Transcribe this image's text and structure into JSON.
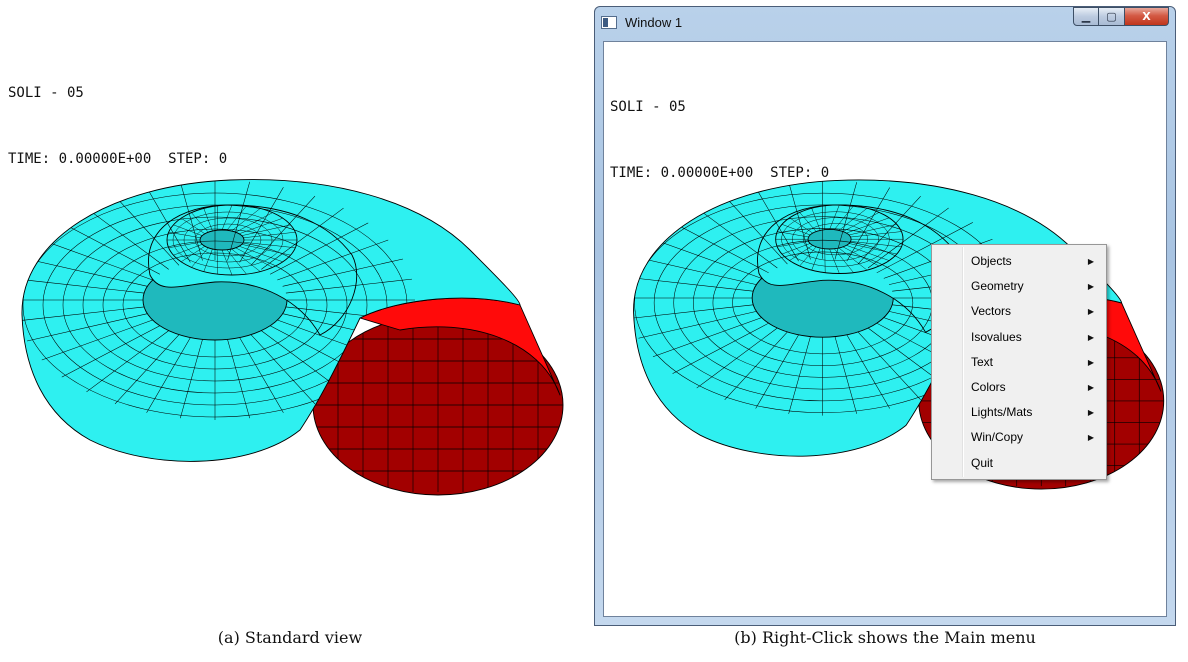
{
  "panel_a": {
    "hud_line1": "SOLI - 05",
    "hud_line2": "TIME: 0.00000E+00  STEP: 0",
    "caption": "(a) Standard view"
  },
  "panel_b": {
    "window_title": "Window 1",
    "caption_buttons": {
      "minimize": "▁",
      "maximize": "▢",
      "close": "X"
    },
    "hud_line1": "SOLI - 05",
    "hud_line2": "TIME: 0.00000E+00  STEP: 0",
    "caption": "(b) Right-Click shows the Main menu"
  },
  "context_menu": {
    "items": [
      {
        "label": "Objects",
        "submenu": true
      },
      {
        "label": "Geometry",
        "submenu": true
      },
      {
        "label": "Vectors",
        "submenu": true
      },
      {
        "label": "Isovalues",
        "submenu": true
      },
      {
        "label": "Text",
        "submenu": true
      },
      {
        "label": "Colors",
        "submenu": true
      },
      {
        "label": "Lights/Mats",
        "submenu": true
      },
      {
        "label": "Win/Copy",
        "submenu": true
      },
      {
        "label": "Quit",
        "submenu": false
      }
    ]
  },
  "colors": {
    "mesh_cyan": "#2ef0f0",
    "mesh_shadow": "#1fb9bd",
    "section_red": "#ff0a0a",
    "section_dark": "#a20000",
    "mesh_line": "#000000"
  }
}
